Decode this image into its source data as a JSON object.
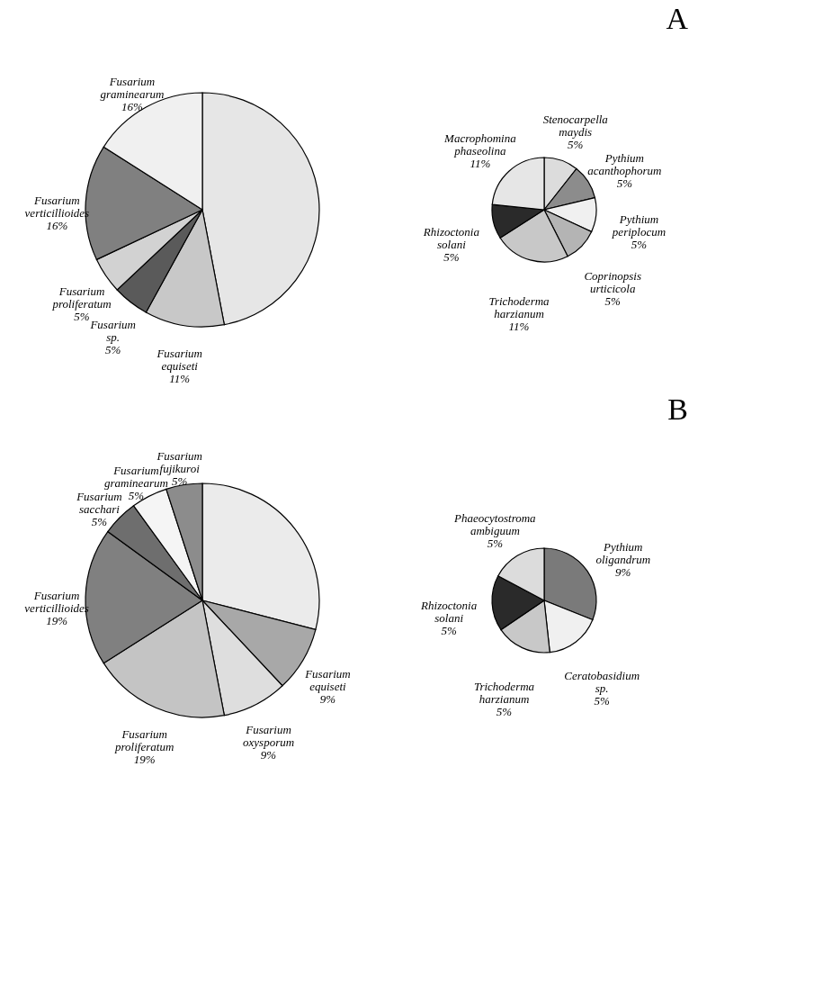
{
  "chart_data": [
    {
      "type": "pie",
      "categories": [
        null,
        "Fusarium equiseti",
        "Fusarium sp.",
        "Fusarium proliferatum",
        "Fusarium verticillioides",
        "Fusarium graminearum"
      ],
      "values": [
        47,
        11,
        5,
        5,
        16,
        16
      ],
      "value_labels": [
        null,
        "11%",
        "5%",
        "5%",
        "16%",
        "16%"
      ],
      "colors": [
        "#e6e6e6",
        "#c8c8c8",
        "#5a5a5a",
        "#d2d2d2",
        "#808080",
        "#f0f0f0"
      ]
    },
    {
      "type": "pie",
      "title": "A",
      "categories": [
        "Stenocarpella maydis",
        "Pythium acanthophorum",
        "Pythium periplocum",
        "Coprinopsis urticicola",
        "Trichoderma harzianum",
        "Rhizoctonia solani",
        "Macrophomina phaseolina"
      ],
      "values": [
        5,
        5,
        5,
        5,
        11,
        5,
        11
      ],
      "value_labels": [
        "5%",
        "5%",
        "5%",
        "5%",
        "11%",
        "5%",
        "11%"
      ],
      "colors": [
        "#dcdcdc",
        "#8c8c8c",
        "#f0f0f0",
        "#b4b4b4",
        "#c8c8c8",
        "#2a2a2a",
        "#e6e6e6"
      ]
    },
    {
      "type": "pie",
      "categories": [
        null,
        "Fusarium equiseti",
        "Fusarium oxysporum",
        "Fusarium proliferatum",
        "Fusarium verticillioides",
        "Fusarium sacchari",
        "Fusarium graminearum",
        "Fusarium fujikuroi"
      ],
      "values": [
        29,
        9,
        9,
        19,
        19,
        5,
        5,
        5
      ],
      "value_labels": [
        null,
        "9%",
        "9%",
        "19%",
        "19%",
        "5%",
        "5%",
        "5%"
      ],
      "colors": [
        "#ebebeb",
        "#a8a8a8",
        "#dedede",
        "#c4c4c4",
        "#808080",
        "#6e6e6e",
        "#f5f5f5",
        "#8c8c8c"
      ]
    },
    {
      "type": "pie",
      "title": "B",
      "categories": [
        "Pythium oligandrum",
        "Ceratobasidium sp.",
        "Trichoderma harzianum",
        "Rhizoctonia solani",
        "Phaeocytostroma ambiguum"
      ],
      "values": [
        9,
        5,
        5,
        5,
        5
      ],
      "value_labels": [
        "9%",
        "5%",
        "5%",
        "5%",
        "5%"
      ],
      "colors": [
        "#7a7a7a",
        "#f0f0f0",
        "#c8c8c8",
        "#2a2a2a",
        "#dcdcdc"
      ]
    }
  ]
}
